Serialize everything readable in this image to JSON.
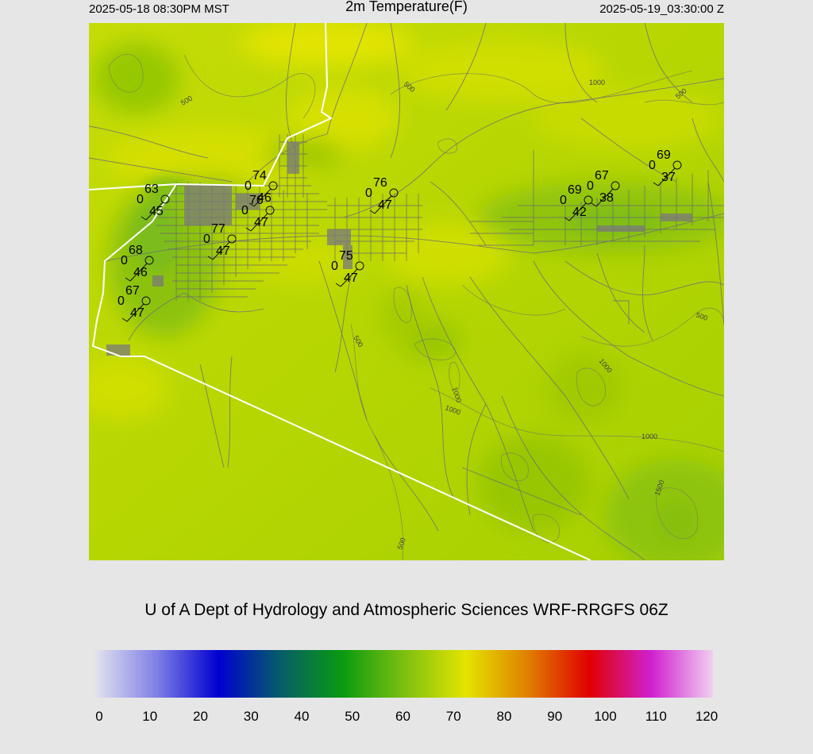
{
  "header": {
    "local_time": "2025-05-18 08:30PM MST",
    "title": "2m Temperature(F)",
    "utc_time": "2025-05-19_03:30:00 Z"
  },
  "credit": "U of A Dept of Hydrology and Atmospheric Sciences WRF-RRGFS 06Z",
  "colorbar": {
    "ticks": [
      "0",
      "10",
      "20",
      "30",
      "40",
      "50",
      "60",
      "70",
      "80",
      "90",
      "100",
      "110",
      "120"
    ],
    "stops": [
      "#e2e2ee",
      "#7f7fe6",
      "#0000d0",
      "#065e68",
      "#0a9a10",
      "#7cc010",
      "#e4e400",
      "#e08000",
      "#e00000",
      "#d020d0",
      "#f0d0f0"
    ]
  },
  "contour_labels": [
    "500",
    "500",
    "1000",
    "500",
    "500",
    "500",
    "1000",
    "1000",
    "1000",
    "1500",
    "500",
    "1000"
  ],
  "stations": [
    {
      "temp": "63",
      "wind": "0",
      "dew": "45"
    },
    {
      "temp": "74",
      "wind": "0",
      "dew": "46"
    },
    {
      "temp": "76",
      "wind": "0",
      "dew": "47"
    },
    {
      "temp": "77",
      "wind": "0",
      "dew": "47"
    },
    {
      "temp": "68",
      "wind": "0",
      "dew": "46"
    },
    {
      "temp": "67",
      "wind": "0",
      "dew": "47"
    },
    {
      "temp": "76",
      "wind": "0",
      "dew": "47"
    },
    {
      "temp": "75",
      "wind": "0",
      "dew": "47"
    },
    {
      "temp": "69",
      "wind": "0",
      "dew": "37"
    },
    {
      "temp": "67",
      "wind": "0",
      "dew": "38"
    },
    {
      "temp": "69",
      "wind": "0",
      "dew": "42"
    }
  ]
}
